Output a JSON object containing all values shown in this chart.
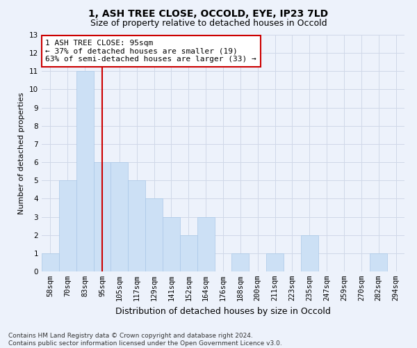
{
  "title1": "1, ASH TREE CLOSE, OCCOLD, EYE, IP23 7LD",
  "title2": "Size of property relative to detached houses in Occold",
  "xlabel": "Distribution of detached houses by size in Occold",
  "ylabel": "Number of detached properties",
  "categories": [
    "58sqm",
    "70sqm",
    "83sqm",
    "95sqm",
    "105sqm",
    "117sqm",
    "129sqm",
    "141sqm",
    "152sqm",
    "164sqm",
    "176sqm",
    "188sqm",
    "200sqm",
    "211sqm",
    "223sqm",
    "235sqm",
    "247sqm",
    "259sqm",
    "270sqm",
    "282sqm",
    "294sqm"
  ],
  "values": [
    1,
    5,
    11,
    6,
    6,
    5,
    4,
    3,
    2,
    3,
    0,
    1,
    0,
    1,
    0,
    2,
    0,
    0,
    0,
    1,
    0
  ],
  "bar_color": "#cce0f5",
  "bar_edge_color": "#aac8e8",
  "vline_x": 3,
  "vline_color": "#cc0000",
  "ylim": [
    0,
    13
  ],
  "yticks": [
    0,
    1,
    2,
    3,
    4,
    5,
    6,
    7,
    8,
    9,
    10,
    11,
    12,
    13
  ],
  "annotation_text": "1 ASH TREE CLOSE: 95sqm\n← 37% of detached houses are smaller (19)\n63% of semi-detached houses are larger (33) →",
  "annotation_box_facecolor": "#ffffff",
  "annotation_box_edgecolor": "#cc0000",
  "grid_color": "#d0d8e8",
  "footer": "Contains HM Land Registry data © Crown copyright and database right 2024.\nContains public sector information licensed under the Open Government Licence v3.0.",
  "bg_color": "#edf2fb",
  "title1_fontsize": 10,
  "title2_fontsize": 9,
  "ylabel_fontsize": 8,
  "xlabel_fontsize": 9,
  "tick_fontsize": 7.5,
  "annotation_fontsize": 8,
  "footer_fontsize": 6.5
}
